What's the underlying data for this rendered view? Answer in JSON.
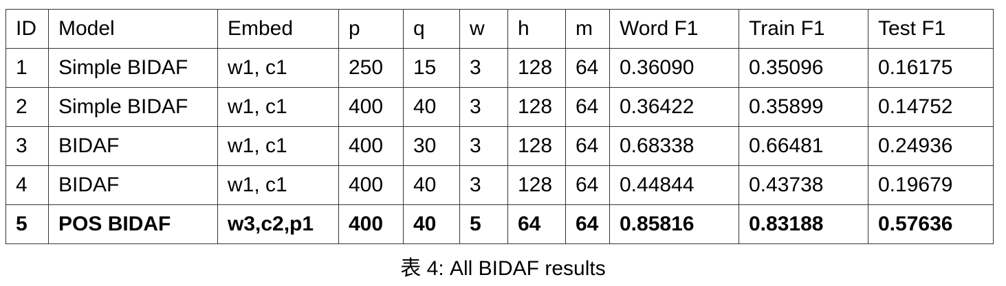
{
  "table": {
    "headers": [
      "ID",
      "Model",
      "Embed",
      "p",
      "q",
      "w",
      "h",
      "m",
      "Word F1",
      "Train F1",
      "Test F1"
    ],
    "rows": [
      {
        "bold": false,
        "cells": [
          "1",
          "Simple BIDAF",
          "w1, c1",
          "250",
          "15",
          "3",
          "128",
          "64",
          "0.36090",
          "0.35096",
          "0.16175"
        ]
      },
      {
        "bold": false,
        "cells": [
          "2",
          "Simple BIDAF",
          "w1, c1",
          "400",
          "40",
          "3",
          "128",
          "64",
          "0.36422",
          "0.35899",
          "0.14752"
        ]
      },
      {
        "bold": false,
        "cells": [
          "3",
          "BIDAF",
          "w1, c1",
          "400",
          "30",
          "3",
          "128",
          "64",
          "0.68338",
          "0.66481",
          "0.24936"
        ]
      },
      {
        "bold": false,
        "cells": [
          "4",
          "BIDAF",
          "w1, c1",
          "400",
          "40",
          "3",
          "128",
          "64",
          "0.44844",
          "0.43738",
          "0.19679"
        ]
      },
      {
        "bold": true,
        "cells": [
          "5",
          "POS BIDAF",
          "w3,c2,p1",
          "400",
          "40",
          "5",
          "64",
          "64",
          "0.85816",
          "0.83188",
          "0.57636"
        ]
      }
    ]
  },
  "caption": "表 4: All BIDAF results"
}
